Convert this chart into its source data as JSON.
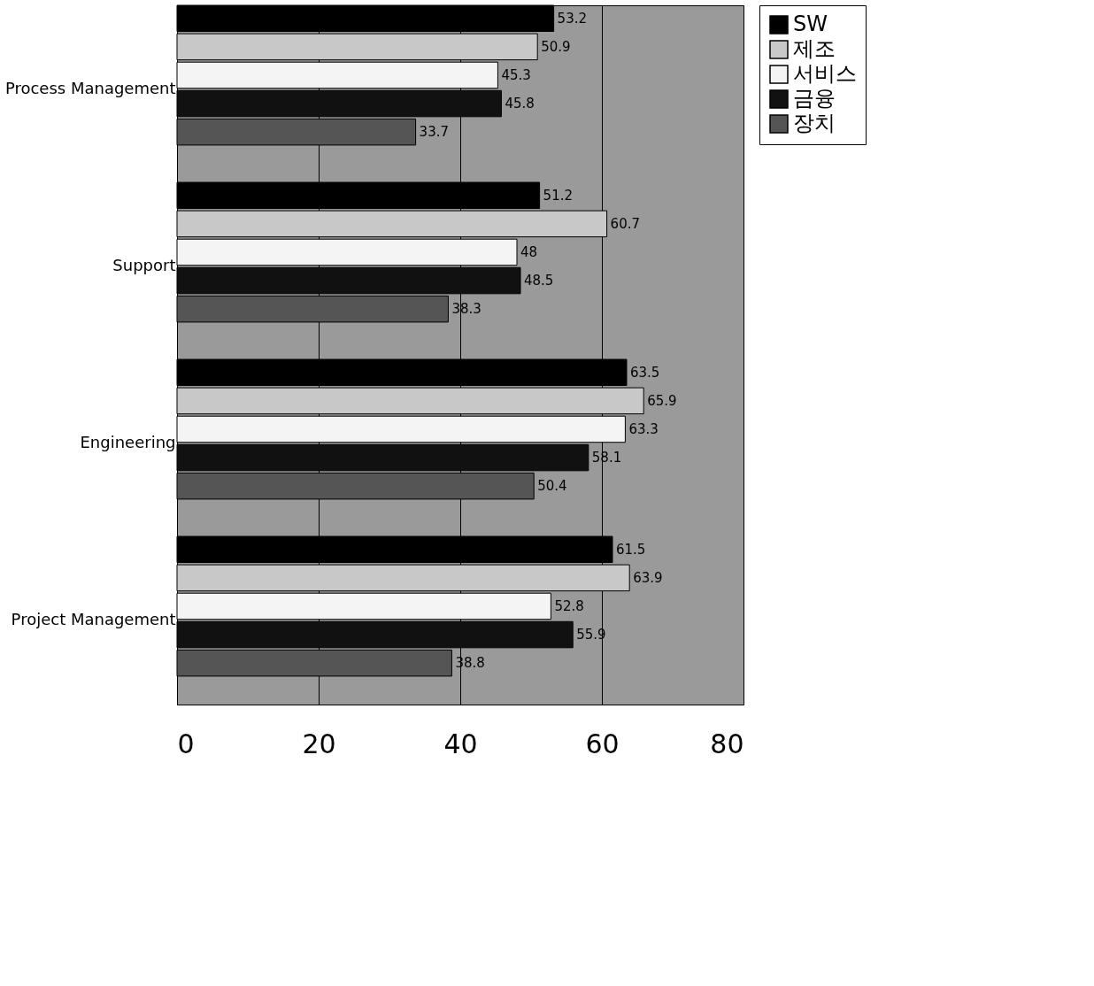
{
  "chart_data": {
    "type": "bar",
    "orientation": "horizontal",
    "categories": [
      "Process Management",
      "Support",
      "Engineering",
      "Project Management"
    ],
    "series": [
      {
        "name": "SW",
        "color": "#000000",
        "values": [
          53.2,
          51.2,
          63.5,
          61.5
        ]
      },
      {
        "name": "제조",
        "color": "#c8c8c8",
        "values": [
          50.9,
          60.7,
          65.9,
          63.9
        ]
      },
      {
        "name": "서비스",
        "color": "#f4f4f4",
        "values": [
          45.3,
          48,
          63.3,
          52.8
        ]
      },
      {
        "name": "금융",
        "color": "#111111",
        "values": [
          45.8,
          48.5,
          58.1,
          55.9
        ]
      },
      {
        "name": "장치",
        "color": "#555555",
        "values": [
          33.7,
          38.3,
          50.4,
          38.8
        ]
      }
    ],
    "xlim": [
      0,
      80
    ],
    "xticks": [
      0,
      20,
      40,
      60,
      80
    ],
    "grid": "x",
    "legend": "right",
    "data_labels": true
  }
}
